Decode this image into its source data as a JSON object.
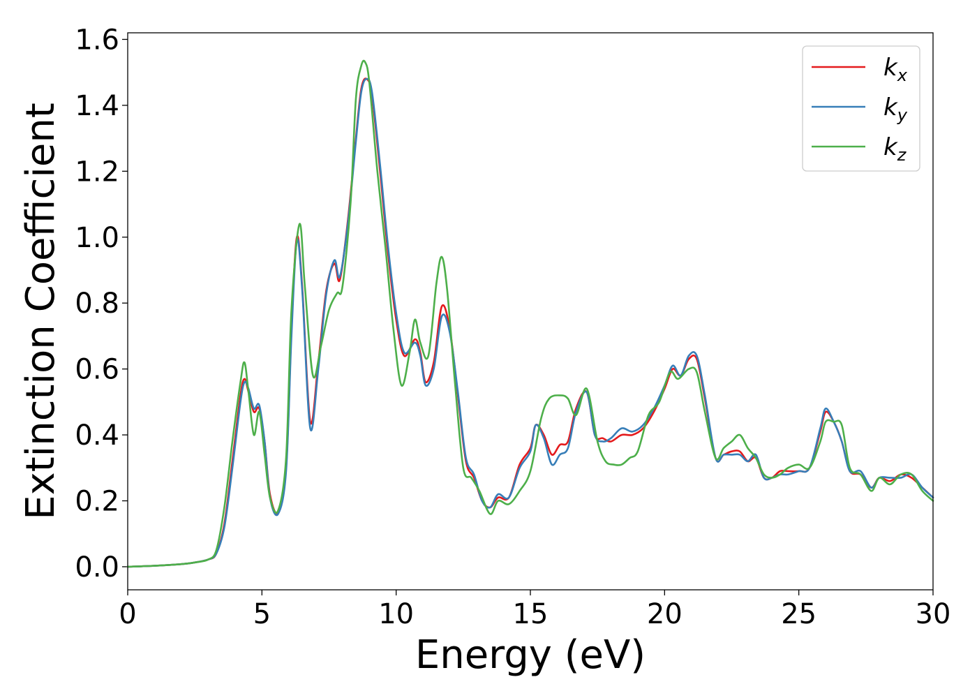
{
  "chart_data": {
    "type": "line",
    "title": "",
    "xlabel": "Energy (eV)",
    "ylabel": "Extinction Coefficient",
    "xlim": [
      0,
      30
    ],
    "ylim": [
      -0.07,
      1.62
    ],
    "xticks": [
      0,
      5,
      10,
      15,
      20,
      25,
      30
    ],
    "yticks": [
      0.0,
      0.2,
      0.4,
      0.6,
      0.8,
      1.0,
      1.2,
      1.4,
      1.6
    ],
    "grid": false,
    "legend_placement": "top-right",
    "series": [
      {
        "name": "k",
        "subscript": "x",
        "color": "#e41a1c",
        "x": [
          0,
          1,
          2,
          2.5,
          3,
          3.3,
          3.6,
          3.9,
          4.2,
          4.35,
          4.5,
          4.7,
          4.9,
          5.1,
          5.3,
          5.6,
          5.9,
          6.1,
          6.3,
          6.5,
          6.8,
          7.1,
          7.4,
          7.7,
          7.9,
          8.2,
          8.5,
          8.7,
          8.9,
          9.1,
          9.4,
          9.7,
          10.0,
          10.3,
          10.7,
          10.9,
          11.1,
          11.4,
          11.7,
          12.0,
          12.3,
          12.6,
          12.9,
          13.2,
          13.5,
          13.8,
          14.2,
          14.6,
          15.0,
          15.2,
          15.5,
          15.8,
          16.1,
          16.4,
          16.7,
          17.1,
          17.4,
          17.7,
          18.0,
          18.4,
          18.8,
          19.2,
          19.6,
          20.0,
          20.3,
          20.6,
          20.9,
          21.2,
          21.5,
          21.9,
          22.2,
          22.5,
          22.8,
          23.1,
          23.4,
          23.7,
          24.0,
          24.3,
          24.6,
          25.0,
          25.4,
          25.8,
          26.0,
          26.3,
          26.6,
          26.9,
          27.3,
          27.7,
          28.0,
          28.4,
          28.8,
          29.2,
          29.6,
          30.0
        ],
        "y": [
          0,
          0.003,
          0.008,
          0.013,
          0.022,
          0.04,
          0.13,
          0.32,
          0.52,
          0.57,
          0.53,
          0.47,
          0.48,
          0.38,
          0.22,
          0.165,
          0.3,
          0.72,
          1.0,
          0.85,
          0.44,
          0.62,
          0.84,
          0.92,
          0.87,
          1.05,
          1.3,
          1.45,
          1.48,
          1.43,
          1.2,
          0.95,
          0.75,
          0.64,
          0.69,
          0.65,
          0.56,
          0.62,
          0.79,
          0.72,
          0.52,
          0.32,
          0.27,
          0.2,
          0.18,
          0.21,
          0.21,
          0.31,
          0.36,
          0.43,
          0.4,
          0.34,
          0.37,
          0.38,
          0.48,
          0.53,
          0.4,
          0.39,
          0.38,
          0.4,
          0.4,
          0.42,
          0.47,
          0.54,
          0.6,
          0.58,
          0.63,
          0.63,
          0.51,
          0.33,
          0.34,
          0.35,
          0.35,
          0.32,
          0.33,
          0.27,
          0.27,
          0.29,
          0.29,
          0.29,
          0.3,
          0.41,
          0.47,
          0.44,
          0.38,
          0.29,
          0.28,
          0.24,
          0.27,
          0.26,
          0.28,
          0.27,
          0.24,
          0.21
        ]
      },
      {
        "name": "k",
        "subscript": "y",
        "color": "#377eb8",
        "x": [
          0,
          1,
          2,
          2.5,
          3,
          3.3,
          3.6,
          3.9,
          4.2,
          4.35,
          4.5,
          4.7,
          4.9,
          5.1,
          5.3,
          5.6,
          5.9,
          6.1,
          6.3,
          6.5,
          6.8,
          7.1,
          7.4,
          7.7,
          7.9,
          8.2,
          8.5,
          8.7,
          8.9,
          9.1,
          9.4,
          9.7,
          10.0,
          10.3,
          10.7,
          10.9,
          11.1,
          11.4,
          11.7,
          12.0,
          12.3,
          12.6,
          12.9,
          13.2,
          13.5,
          13.8,
          14.2,
          14.6,
          15.0,
          15.2,
          15.5,
          15.8,
          16.1,
          16.4,
          16.7,
          17.1,
          17.4,
          17.7,
          18.0,
          18.4,
          18.8,
          19.2,
          19.6,
          20.0,
          20.3,
          20.6,
          20.9,
          21.2,
          21.5,
          21.9,
          22.2,
          22.5,
          22.8,
          23.1,
          23.4,
          23.7,
          24.0,
          24.3,
          24.6,
          25.0,
          25.4,
          25.8,
          26.0,
          26.3,
          26.6,
          26.9,
          27.3,
          27.7,
          28.0,
          28.4,
          28.8,
          29.2,
          29.6,
          30.0
        ],
        "y": [
          0,
          0.003,
          0.008,
          0.013,
          0.022,
          0.04,
          0.12,
          0.3,
          0.5,
          0.56,
          0.54,
          0.48,
          0.49,
          0.38,
          0.21,
          0.16,
          0.29,
          0.7,
          0.99,
          0.84,
          0.42,
          0.6,
          0.83,
          0.93,
          0.88,
          1.04,
          1.29,
          1.44,
          1.48,
          1.44,
          1.22,
          0.97,
          0.77,
          0.65,
          0.68,
          0.64,
          0.55,
          0.6,
          0.76,
          0.71,
          0.53,
          0.33,
          0.28,
          0.2,
          0.18,
          0.22,
          0.21,
          0.3,
          0.35,
          0.43,
          0.39,
          0.31,
          0.34,
          0.36,
          0.47,
          0.53,
          0.4,
          0.38,
          0.39,
          0.42,
          0.41,
          0.43,
          0.48,
          0.55,
          0.61,
          0.58,
          0.64,
          0.64,
          0.52,
          0.33,
          0.34,
          0.34,
          0.34,
          0.32,
          0.34,
          0.27,
          0.27,
          0.28,
          0.28,
          0.29,
          0.3,
          0.42,
          0.48,
          0.44,
          0.38,
          0.29,
          0.29,
          0.24,
          0.27,
          0.27,
          0.27,
          0.28,
          0.24,
          0.21
        ]
      },
      {
        "name": "k",
        "subscript": "z",
        "color": "#4daf4a",
        "x": [
          0,
          1,
          2,
          2.5,
          3,
          3.3,
          3.6,
          3.9,
          4.2,
          4.35,
          4.5,
          4.7,
          4.9,
          5.1,
          5.3,
          5.6,
          5.9,
          6.1,
          6.4,
          6.6,
          6.9,
          7.2,
          7.5,
          7.8,
          8.0,
          8.3,
          8.5,
          8.7,
          8.85,
          9.0,
          9.3,
          9.6,
          9.9,
          10.2,
          10.5,
          10.7,
          10.9,
          11.2,
          11.5,
          11.7,
          11.9,
          12.2,
          12.5,
          12.8,
          13.1,
          13.5,
          13.8,
          14.2,
          14.6,
          15.0,
          15.4,
          15.7,
          16.1,
          16.4,
          16.7,
          17.1,
          17.5,
          17.8,
          18.1,
          18.4,
          18.7,
          19.0,
          19.4,
          19.8,
          20.2,
          20.5,
          20.9,
          21.2,
          21.5,
          21.9,
          22.2,
          22.5,
          22.8,
          23.1,
          23.4,
          23.7,
          24.0,
          24.3,
          24.6,
          25.0,
          25.4,
          25.8,
          26.0,
          26.3,
          26.6,
          26.9,
          27.3,
          27.7,
          28.0,
          28.4,
          28.8,
          29.2,
          29.6,
          30.0
        ],
        "y": [
          0,
          0.003,
          0.008,
          0.013,
          0.022,
          0.05,
          0.18,
          0.38,
          0.56,
          0.62,
          0.53,
          0.4,
          0.47,
          0.34,
          0.21,
          0.17,
          0.33,
          0.78,
          1.04,
          0.85,
          0.58,
          0.67,
          0.78,
          0.83,
          0.85,
          1.1,
          1.42,
          1.52,
          1.53,
          1.47,
          1.2,
          0.97,
          0.72,
          0.55,
          0.65,
          0.75,
          0.68,
          0.64,
          0.86,
          0.94,
          0.84,
          0.55,
          0.3,
          0.27,
          0.23,
          0.16,
          0.2,
          0.19,
          0.23,
          0.29,
          0.45,
          0.51,
          0.52,
          0.51,
          0.46,
          0.54,
          0.38,
          0.32,
          0.31,
          0.31,
          0.33,
          0.35,
          0.46,
          0.5,
          0.59,
          0.57,
          0.6,
          0.59,
          0.47,
          0.33,
          0.36,
          0.38,
          0.4,
          0.36,
          0.33,
          0.28,
          0.27,
          0.28,
          0.3,
          0.31,
          0.3,
          0.38,
          0.44,
          0.44,
          0.43,
          0.3,
          0.28,
          0.23,
          0.27,
          0.25,
          0.28,
          0.28,
          0.23,
          0.2
        ]
      }
    ]
  }
}
